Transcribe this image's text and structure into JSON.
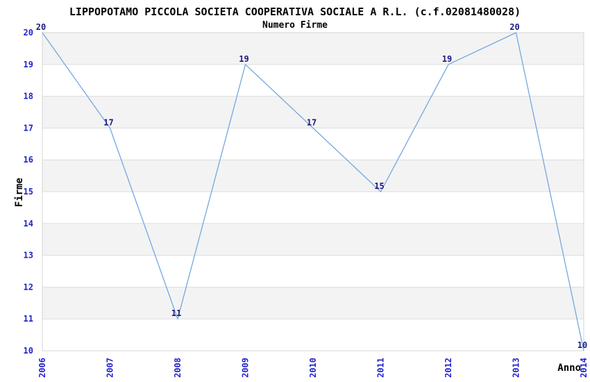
{
  "chart_data": {
    "type": "line",
    "title": "LIPPOPOTAMO PICCOLA SOCIETA COOPERATIVA SOCIALE A R.L. (c.f.02081480028)",
    "subtitle": "Numero Firme",
    "xlabel": "Anno",
    "ylabel": "Firme",
    "categories": [
      "2006",
      "2007",
      "2008",
      "2009",
      "2010",
      "2011",
      "2012",
      "2013",
      "2014"
    ],
    "values": [
      20,
      17,
      11,
      19,
      17,
      15,
      19,
      20,
      10
    ],
    "ylim": [
      10,
      20
    ],
    "ytick_step": 1,
    "point_labels": [
      "20",
      "17",
      "11",
      "19",
      "17",
      "15",
      "19",
      "20",
      "10"
    ],
    "legend": "none",
    "grid": "alternating-horizontal-bands",
    "colors": {
      "line": "#74a7e0",
      "tick_label": "#2222cc",
      "point_label": "#1a1a80",
      "band": "#f3f3f3",
      "grid_line": "#dddddd",
      "border": "#d6d6d6",
      "text": "#000000",
      "background": "#ffffff"
    }
  }
}
